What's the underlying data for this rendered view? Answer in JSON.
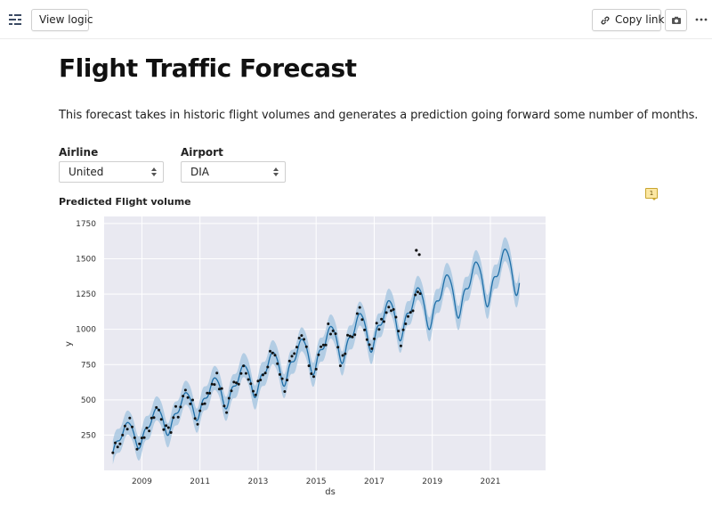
{
  "toolbar": {
    "menu_icon": "sliders-menu-icon",
    "view_logic_label": "View logic",
    "copy_link_label": "Copy link",
    "link_icon": "link-icon",
    "camera_icon": "camera-icon",
    "more_icon": "more-horizontal-icon"
  },
  "page": {
    "title": "Flight Traffic Forecast",
    "description": "This forecast takes in historic flight volumes and generates a prediction going forward some number of months."
  },
  "filters": {
    "airline": {
      "label": "Airline",
      "value": "United"
    },
    "airport": {
      "label": "Airport",
      "value": "DIA"
    }
  },
  "comment_badge": "1",
  "chart_title": "Predicted Flight volume",
  "colors": {
    "plot_bg": "#e9e9f1",
    "band": "#a9c8e2",
    "line": "#1f6fa8",
    "point": "#111111",
    "accent_badge": "#fbe7a3"
  },
  "chart_data": {
    "type": "line",
    "title": "Predicted Flight volume",
    "xlabel": "ds",
    "ylabel": "y",
    "xlim": [
      2007.7,
      2022.9
    ],
    "ylim": [
      0,
      1800
    ],
    "x_ticks": [
      "2009",
      "2011",
      "2013",
      "2015",
      "2017",
      "2019",
      "2021"
    ],
    "y_ticks": [
      "250",
      "500",
      "750",
      "1000",
      "1250",
      "1500",
      "1750"
    ],
    "series": [
      {
        "name": "forecast (yhat)",
        "style": "line",
        "x_start": 2008.0,
        "x_end": 2022.0,
        "trend": [
          240,
          1450
        ],
        "seasonal_amplitude": 130
      },
      {
        "name": "uncertainty interval",
        "style": "band",
        "half_width": 85
      },
      {
        "name": "observed",
        "style": "points",
        "x_start": 2008.0,
        "x_end": 2018.6
      }
    ],
    "observed_outliers": [
      {
        "x": 2018.45,
        "y": 1560
      },
      {
        "x": 2018.55,
        "y": 1530
      }
    ]
  }
}
